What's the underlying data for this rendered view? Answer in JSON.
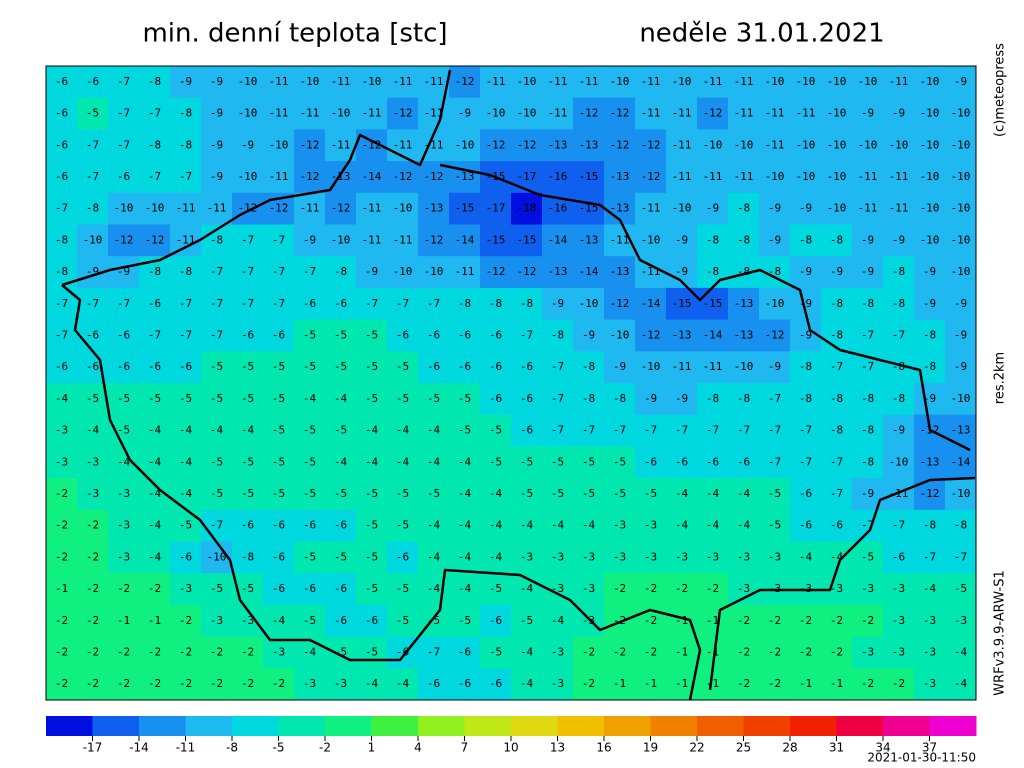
{
  "title": "min. denní teplota [stc]",
  "date": "neděle 31.01.2021",
  "credit": "(c)meteopress",
  "resolution": "res.2km",
  "model": "WRFv3.9.9-ARW-S1",
  "timestamp": "2021-01-30-11:50",
  "map": {
    "clim": [
      -20,
      40
    ],
    "ticks": [
      -17,
      -14,
      -11,
      -8,
      -5,
      -2,
      1,
      4,
      7,
      10,
      13,
      16,
      19,
      22,
      25,
      28,
      31,
      34,
      37
    ],
    "colors": [
      "#0010e0",
      "#1060f0",
      "#1890f0",
      "#20b8f0",
      "#00d8e0",
      "#00e8b0",
      "#10f080",
      "#40f040",
      "#90f020",
      "#c0e818",
      "#e0d810",
      "#f0c000",
      "#f0a000",
      "#f08000",
      "#f06000",
      "#f04000",
      "#f02000",
      "#f00040",
      "#f00090",
      "#f000d0"
    ],
    "values": [
      [
        -6,
        -6,
        -7,
        -8,
        -9,
        -9,
        -10,
        -11,
        -10,
        -11,
        -10,
        -11,
        -11,
        -12,
        -11,
        -10,
        -11,
        -11,
        -10,
        -11,
        -10,
        -11,
        -11,
        -10,
        -10,
        -10,
        -10,
        -11,
        -10,
        -9
      ],
      [
        -6,
        -5,
        -7,
        -7,
        -8,
        -9,
        -10,
        -11,
        -11,
        -10,
        -11,
        -12,
        -11,
        -9,
        -10,
        -10,
        -11,
        -12,
        -12,
        -11,
        -11,
        -12,
        -11,
        -11,
        -11,
        -10,
        -9,
        -9,
        -10,
        -10
      ],
      [
        -6,
        -7,
        -7,
        -8,
        -8,
        -9,
        -9,
        -10,
        -12,
        -11,
        -12,
        -11,
        -11,
        -10,
        -12,
        -12,
        -13,
        -13,
        -12,
        -12,
        -11,
        -10,
        -10,
        -11,
        -10,
        -10,
        -10,
        -10,
        -10,
        -10
      ],
      [
        -6,
        -7,
        -6,
        -7,
        -7,
        -9,
        -10,
        -11,
        -12,
        -13,
        -14,
        -12,
        -12,
        -13,
        -15,
        -17,
        -16,
        -15,
        -13,
        -12,
        -11,
        -11,
        -11,
        -10,
        -10,
        -10,
        -11,
        -11,
        -10,
        -10
      ],
      [
        -7,
        -8,
        -10,
        -10,
        -11,
        -11,
        -12,
        -12,
        -11,
        -12,
        -11,
        -10,
        -13,
        -15,
        -17,
        -18,
        -16,
        -15,
        -13,
        -11,
        -10,
        -9,
        -8,
        -9,
        -9,
        -10,
        -11,
        -11,
        -10,
        -10
      ],
      [
        -8,
        -10,
        -12,
        -12,
        -11,
        -8,
        -7,
        -7,
        -9,
        -10,
        -11,
        -11,
        -12,
        -14,
        -15,
        -15,
        -14,
        -13,
        -11,
        -10,
        -9,
        -8,
        -8,
        -9,
        -8,
        -8,
        -9,
        -9,
        -10,
        -10
      ],
      [
        -8,
        -9,
        -9,
        -8,
        -8,
        -7,
        -7,
        -7,
        -7,
        -8,
        -9,
        -10,
        -10,
        -11,
        -12,
        -12,
        -13,
        -14,
        -13,
        -11,
        -9,
        -8,
        -8,
        -8,
        -9,
        -9,
        -9,
        -8,
        -9,
        -10
      ],
      [
        -7,
        -7,
        -7,
        -6,
        -7,
        -7,
        -7,
        -7,
        -6,
        -6,
        -7,
        -7,
        -7,
        -8,
        -8,
        -8,
        -9,
        -10,
        -12,
        -14,
        -15,
        -15,
        -13,
        -10,
        -9,
        -8,
        -8,
        -8,
        -9,
        -9
      ],
      [
        -7,
        -6,
        -6,
        -7,
        -7,
        -7,
        -6,
        -6,
        -5,
        -5,
        -5,
        -6,
        -6,
        -6,
        -6,
        -7,
        -8,
        -9,
        -10,
        -12,
        -13,
        -14,
        -13,
        -12,
        -9,
        -8,
        -7,
        -7,
        -8,
        -9
      ],
      [
        -6,
        -6,
        -6,
        -6,
        -6,
        -5,
        -5,
        -5,
        -5,
        -5,
        -5,
        -5,
        -6,
        -6,
        -6,
        -6,
        -7,
        -8,
        -9,
        -10,
        -11,
        -11,
        -10,
        -9,
        -8,
        -7,
        -7,
        -8,
        -8,
        -9
      ],
      [
        -4,
        -5,
        -5,
        -5,
        -5,
        -5,
        -5,
        -5,
        -4,
        -4,
        -5,
        -5,
        -5,
        -5,
        -6,
        -6,
        -7,
        -8,
        -8,
        -9,
        -9,
        -8,
        -8,
        -7,
        -8,
        -8,
        -8,
        -8,
        -9,
        -10
      ],
      [
        -3,
        -4,
        -5,
        -4,
        -4,
        -4,
        -4,
        -5,
        -5,
        -5,
        -4,
        -4,
        -4,
        -5,
        -5,
        -6,
        -7,
        -7,
        -7,
        -7,
        -7,
        -7,
        -7,
        -7,
        -7,
        -8,
        -8,
        -9,
        -12,
        -13
      ],
      [
        -3,
        -3,
        -4,
        -4,
        -4,
        -5,
        -5,
        -5,
        -5,
        -4,
        -4,
        -4,
        -4,
        -4,
        -5,
        -5,
        -5,
        -5,
        -5,
        -6,
        -6,
        -6,
        -6,
        -7,
        -7,
        -7,
        -8,
        -10,
        -13,
        -14
      ],
      [
        -2,
        -3,
        -3,
        -4,
        -4,
        -5,
        -5,
        -5,
        -5,
        -5,
        -5,
        -5,
        -5,
        -4,
        -4,
        -5,
        -5,
        -5,
        -5,
        -5,
        -4,
        -4,
        -4,
        -5,
        -6,
        -7,
        -9,
        -11,
        -12,
        -10
      ],
      [
        -2,
        -2,
        -3,
        -4,
        -5,
        -7,
        -6,
        -6,
        -6,
        -6,
        -5,
        -5,
        -4,
        -4,
        -4,
        -4,
        -4,
        -4,
        -3,
        -3,
        -4,
        -4,
        -4,
        -5,
        -6,
        -6,
        -7,
        -7,
        -8,
        -8
      ],
      [
        -2,
        -2,
        -3,
        -4,
        -6,
        -10,
        -8,
        -6,
        -5,
        -5,
        -5,
        -6,
        -4,
        -4,
        -4,
        -3,
        -3,
        -3,
        -3,
        -3,
        -3,
        -3,
        -3,
        -3,
        -4,
        -4,
        -5,
        -6,
        -7,
        -7
      ],
      [
        -1,
        -2,
        -2,
        -2,
        -3,
        -5,
        -5,
        -6,
        -6,
        -6,
        -5,
        -5,
        -4,
        -4,
        -5,
        -4,
        -3,
        -3,
        -2,
        -2,
        -2,
        -2,
        -3,
        -3,
        -3,
        -3,
        -3,
        -3,
        -4,
        -5
      ],
      [
        -2,
        -2,
        -1,
        -1,
        -2,
        -3,
        -3,
        -4,
        -5,
        -6,
        -6,
        -5,
        -5,
        -5,
        -6,
        -5,
        -4,
        -3,
        -2,
        -2,
        -1,
        -1,
        -2,
        -2,
        -2,
        -2,
        -2,
        -3,
        -3,
        -3
      ],
      [
        -2,
        -2,
        -2,
        -2,
        -2,
        -2,
        -2,
        -3,
        -4,
        -5,
        -5,
        -6,
        -7,
        -6,
        -5,
        -4,
        -3,
        -2,
        -2,
        -2,
        -1,
        -1,
        -2,
        -2,
        -2,
        -2,
        -3,
        -3,
        -3,
        -4
      ],
      [
        -2,
        -2,
        -2,
        -2,
        -2,
        -2,
        -2,
        -2,
        -3,
        -3,
        -4,
        -4,
        -6,
        -6,
        -6,
        -4,
        -3,
        -2,
        -1,
        -1,
        -1,
        -1,
        -2,
        -2,
        -1,
        -1,
        -2,
        -2,
        -3,
        -4
      ]
    ]
  }
}
